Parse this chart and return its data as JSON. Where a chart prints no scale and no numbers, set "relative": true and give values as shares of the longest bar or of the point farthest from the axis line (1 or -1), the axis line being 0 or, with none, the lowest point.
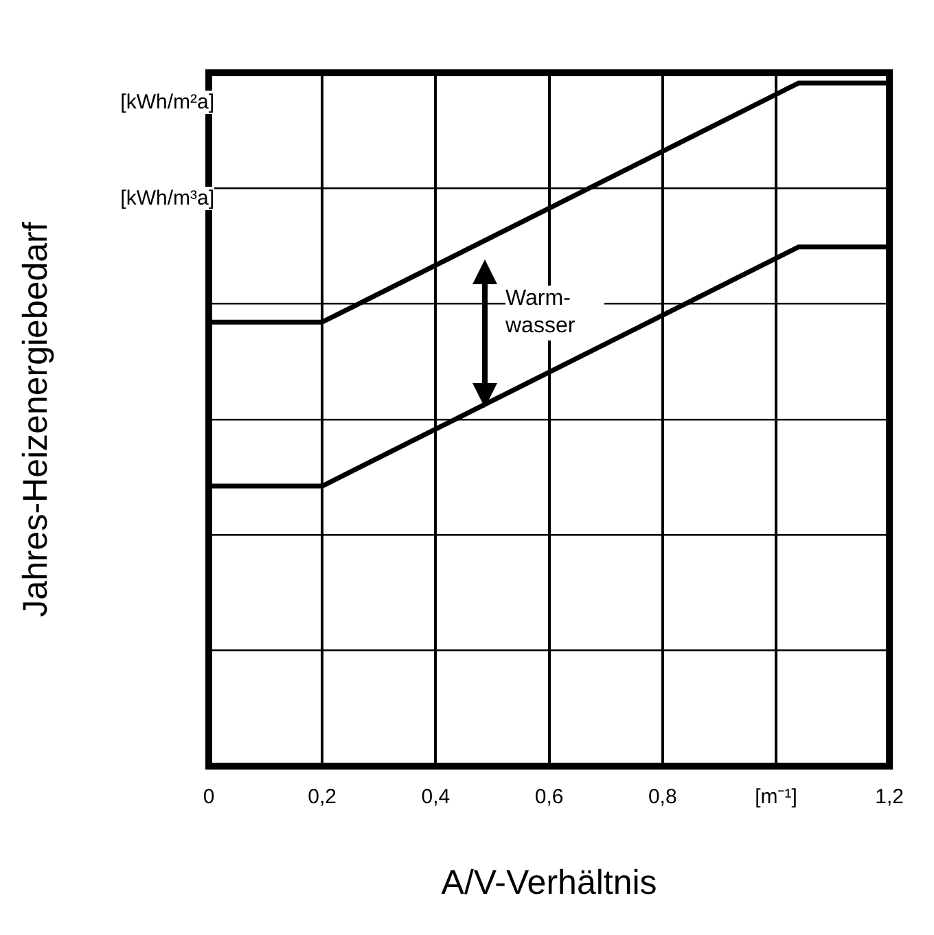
{
  "chart_data": {
    "type": "line",
    "xlabel": "A/V-Verhältnis",
    "ylabel": "Jahres-Heizenergiebedarf",
    "relative": true,
    "grid": true,
    "legend": false,
    "marker": "none",
    "line_style": "solid",
    "x": [
      0,
      0.2,
      1.04,
      1.2
    ],
    "xlim": [
      0,
      1.2
    ],
    "xticks": [
      0,
      {
        "value": 0.2,
        "label": "0,2"
      },
      {
        "value": 0.4,
        "label": "0,4"
      },
      {
        "value": 0.6,
        "label": "0,6"
      },
      {
        "value": 0.8,
        "label": "0,8"
      },
      {
        "value": 1,
        "label": "[m⁻¹]"
      },
      {
        "value": 1.2,
        "label": "1,2"
      }
    ],
    "series": [
      {
        "color": "#000000",
        "values": [
          0.65,
          0.65,
          1,
          1
        ]
      },
      {
        "color": "#000000",
        "values": [
          0.41,
          0.41,
          0.76,
          0.76
        ]
      }
    ],
    "annotations": [
      "[kWh/m²a]",
      "[kWh/m³a]",
      "Warm-wasser"
    ]
  }
}
